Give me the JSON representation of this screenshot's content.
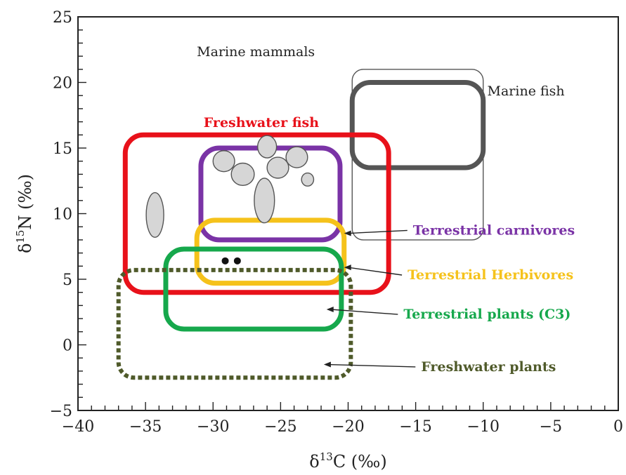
{
  "chart_data": {
    "type": "scatter",
    "xlim": [
      -40,
      0
    ],
    "ylim": [
      -5,
      25
    ],
    "x_ticks": [
      -40,
      -35,
      -30,
      -25,
      -20,
      -15,
      -10,
      -5,
      0
    ],
    "y_ticks": [
      -5,
      0,
      5,
      10,
      15,
      20,
      25
    ],
    "x_tick_labels": [
      "−40",
      "−35",
      "−30",
      "−25",
      "−20",
      "−15",
      "−10",
      "−5",
      "0"
    ],
    "y_tick_labels": [
      "−5",
      "0",
      "5",
      "10",
      "15",
      "20",
      "25"
    ],
    "xlabel": {
      "main": "δ",
      "sup": "13",
      "rest": "C (‰)"
    },
    "ylabel": {
      "main": "δ",
      "sup": "15",
      "rest": "N (‰)"
    },
    "regions": [
      {
        "name": "Marine mammals",
        "color": "#555555",
        "style": "thin",
        "x": [
          -19.7,
          -10
        ],
        "y": [
          8,
          21
        ]
      },
      {
        "name": "Marine fish",
        "color": "#555555",
        "style": "thick",
        "x": [
          -19.7,
          -10
        ],
        "y": [
          13.5,
          20
        ]
      },
      {
        "name": "Freshwater fish",
        "color": "#e8111a",
        "style": "thick",
        "x": [
          -36.5,
          -17
        ],
        "y": [
          4,
          16
        ]
      },
      {
        "name": "Terrestrial carnivores",
        "color": "#7a33a6",
        "style": "thick",
        "x": [
          -30.9,
          -20.6
        ],
        "y": [
          8,
          15
        ]
      },
      {
        "name": "Terrestrial Herbivores",
        "color": "#f5c21b",
        "style": "thick",
        "x": [
          -31.2,
          -20.3
        ],
        "y": [
          4.7,
          9.5
        ]
      },
      {
        "name": "Terrestrial plants (C3)",
        "color": "#16a84c",
        "style": "thick",
        "x": [
          -33.5,
          -20.5
        ],
        "y": [
          1.2,
          7.3
        ]
      },
      {
        "name": "Freshwater plants",
        "color": "#4f5a2a",
        "style": "dotted",
        "x": [
          -37,
          -19.8
        ],
        "y": [
          -2.5,
          5.7
        ]
      }
    ],
    "ellipses": [
      {
        "cx": -34.3,
        "cy": 9.9,
        "rx": 0.65,
        "ry": 1.7
      },
      {
        "cx": -29.2,
        "cy": 14.0,
        "rx": 0.8,
        "ry": 0.8
      },
      {
        "cx": -27.8,
        "cy": 13.0,
        "rx": 0.85,
        "ry": 0.85
      },
      {
        "cx": -26.0,
        "cy": 15.1,
        "rx": 0.7,
        "ry": 0.85
      },
      {
        "cx": -26.2,
        "cy": 11.0,
        "rx": 0.75,
        "ry": 1.7
      },
      {
        "cx": -25.2,
        "cy": 13.5,
        "rx": 0.8,
        "ry": 0.8
      },
      {
        "cx": -23.8,
        "cy": 14.3,
        "rx": 0.8,
        "ry": 0.8
      },
      {
        "cx": -23.0,
        "cy": 12.6,
        "rx": 0.45,
        "ry": 0.5
      }
    ],
    "points": [
      {
        "x": -29.1,
        "y": 6.4
      },
      {
        "x": -28.2,
        "y": 6.4
      }
    ],
    "annotations": [
      {
        "text": "Marine mammals",
        "color": "#222222",
        "bold": false,
        "x": -31.2,
        "y": 22.0
      },
      {
        "text": "Marine fish",
        "color": "#222222",
        "bold": false,
        "x": -9.7,
        "y": 19.0
      },
      {
        "text": "Freshwater fish",
        "color": "#e8111a",
        "bold": true,
        "x": -30.7,
        "y": 16.6
      },
      {
        "text": "Terrestrial carnivores",
        "color": "#7a33a6",
        "bold": true,
        "x": -15.2,
        "y": 8.4,
        "arrow_to": [
          -20.3,
          8.5
        ]
      },
      {
        "text": "Terrestrial Herbivores",
        "color": "#f5c21b",
        "bold": true,
        "x": -15.6,
        "y": 5.0,
        "arrow_to": [
          -20.3,
          5.9
        ]
      },
      {
        "text": "Terrestrial plants (C3)",
        "color": "#16a84c",
        "bold": true,
        "x": -15.9,
        "y": 2.0,
        "arrow_to": [
          -21.6,
          2.7
        ]
      },
      {
        "text": "Freshwater plants",
        "color": "#4f5a2a",
        "bold": true,
        "x": -14.6,
        "y": -2.0,
        "arrow_to": [
          -21.8,
          -1.5
        ]
      }
    ]
  }
}
